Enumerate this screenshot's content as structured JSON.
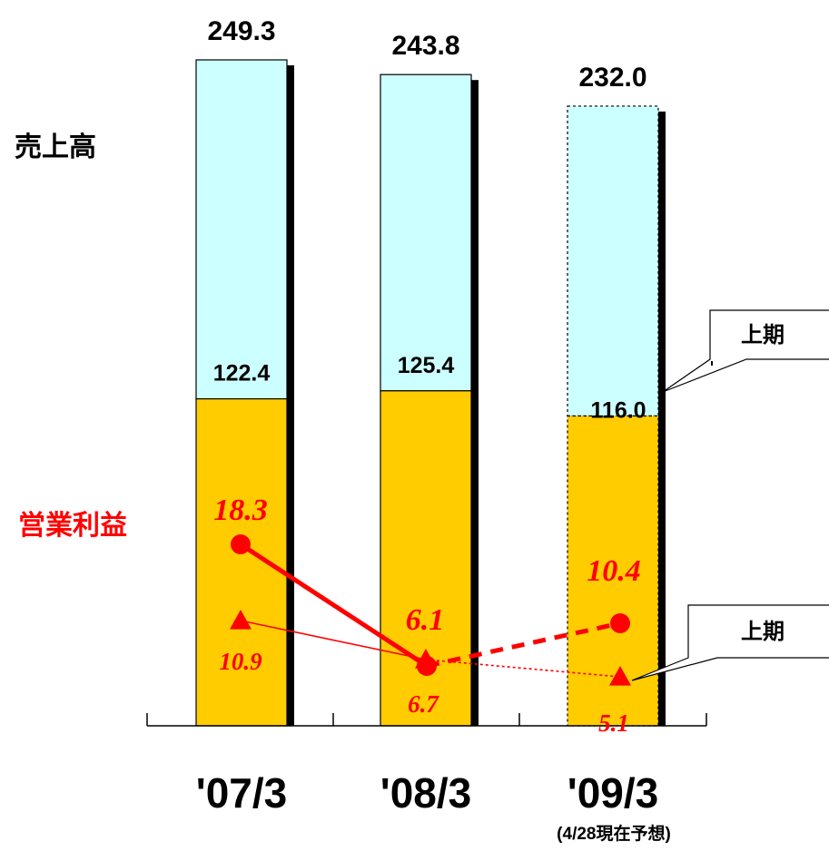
{
  "colors": {
    "sales_fill": "#ccffff",
    "first_half_fill": "#ffcc00",
    "profit_color": "#ff0000",
    "text_dark": "#000000"
  },
  "chart_data": {
    "type": "bar",
    "title": "",
    "categories": [
      "'07/3",
      "'08/3",
      "'09/3"
    ],
    "category_note": "(4/28現在予想)",
    "ylim": [
      0,
      260
    ],
    "sales_label": "売上高",
    "profit_label": "営業利益",
    "callout_sales": "上期",
    "callout_profit": "上期",
    "sales_total": [
      249.3,
      243.8,
      232.0
    ],
    "sales_total_labels": [
      "249.3",
      "243.8",
      "232.0"
    ],
    "sales_first_half": [
      122.4,
      125.4,
      116.0
    ],
    "sales_first_half_labels": [
      "122.4",
      "125.4",
      "116.0"
    ],
    "forecast": [
      false,
      false,
      true
    ],
    "series": [
      {
        "name": "営業利益",
        "marker": "circle",
        "values": [
          18.3,
          6.1,
          10.4
        ],
        "labels": [
          "18.3",
          "6.1",
          "10.4"
        ]
      },
      {
        "name": "営業利益 上期",
        "marker": "triangle",
        "values": [
          10.9,
          6.7,
          5.1
        ],
        "labels": [
          "10.9",
          "6.7",
          "5.1"
        ]
      }
    ]
  }
}
